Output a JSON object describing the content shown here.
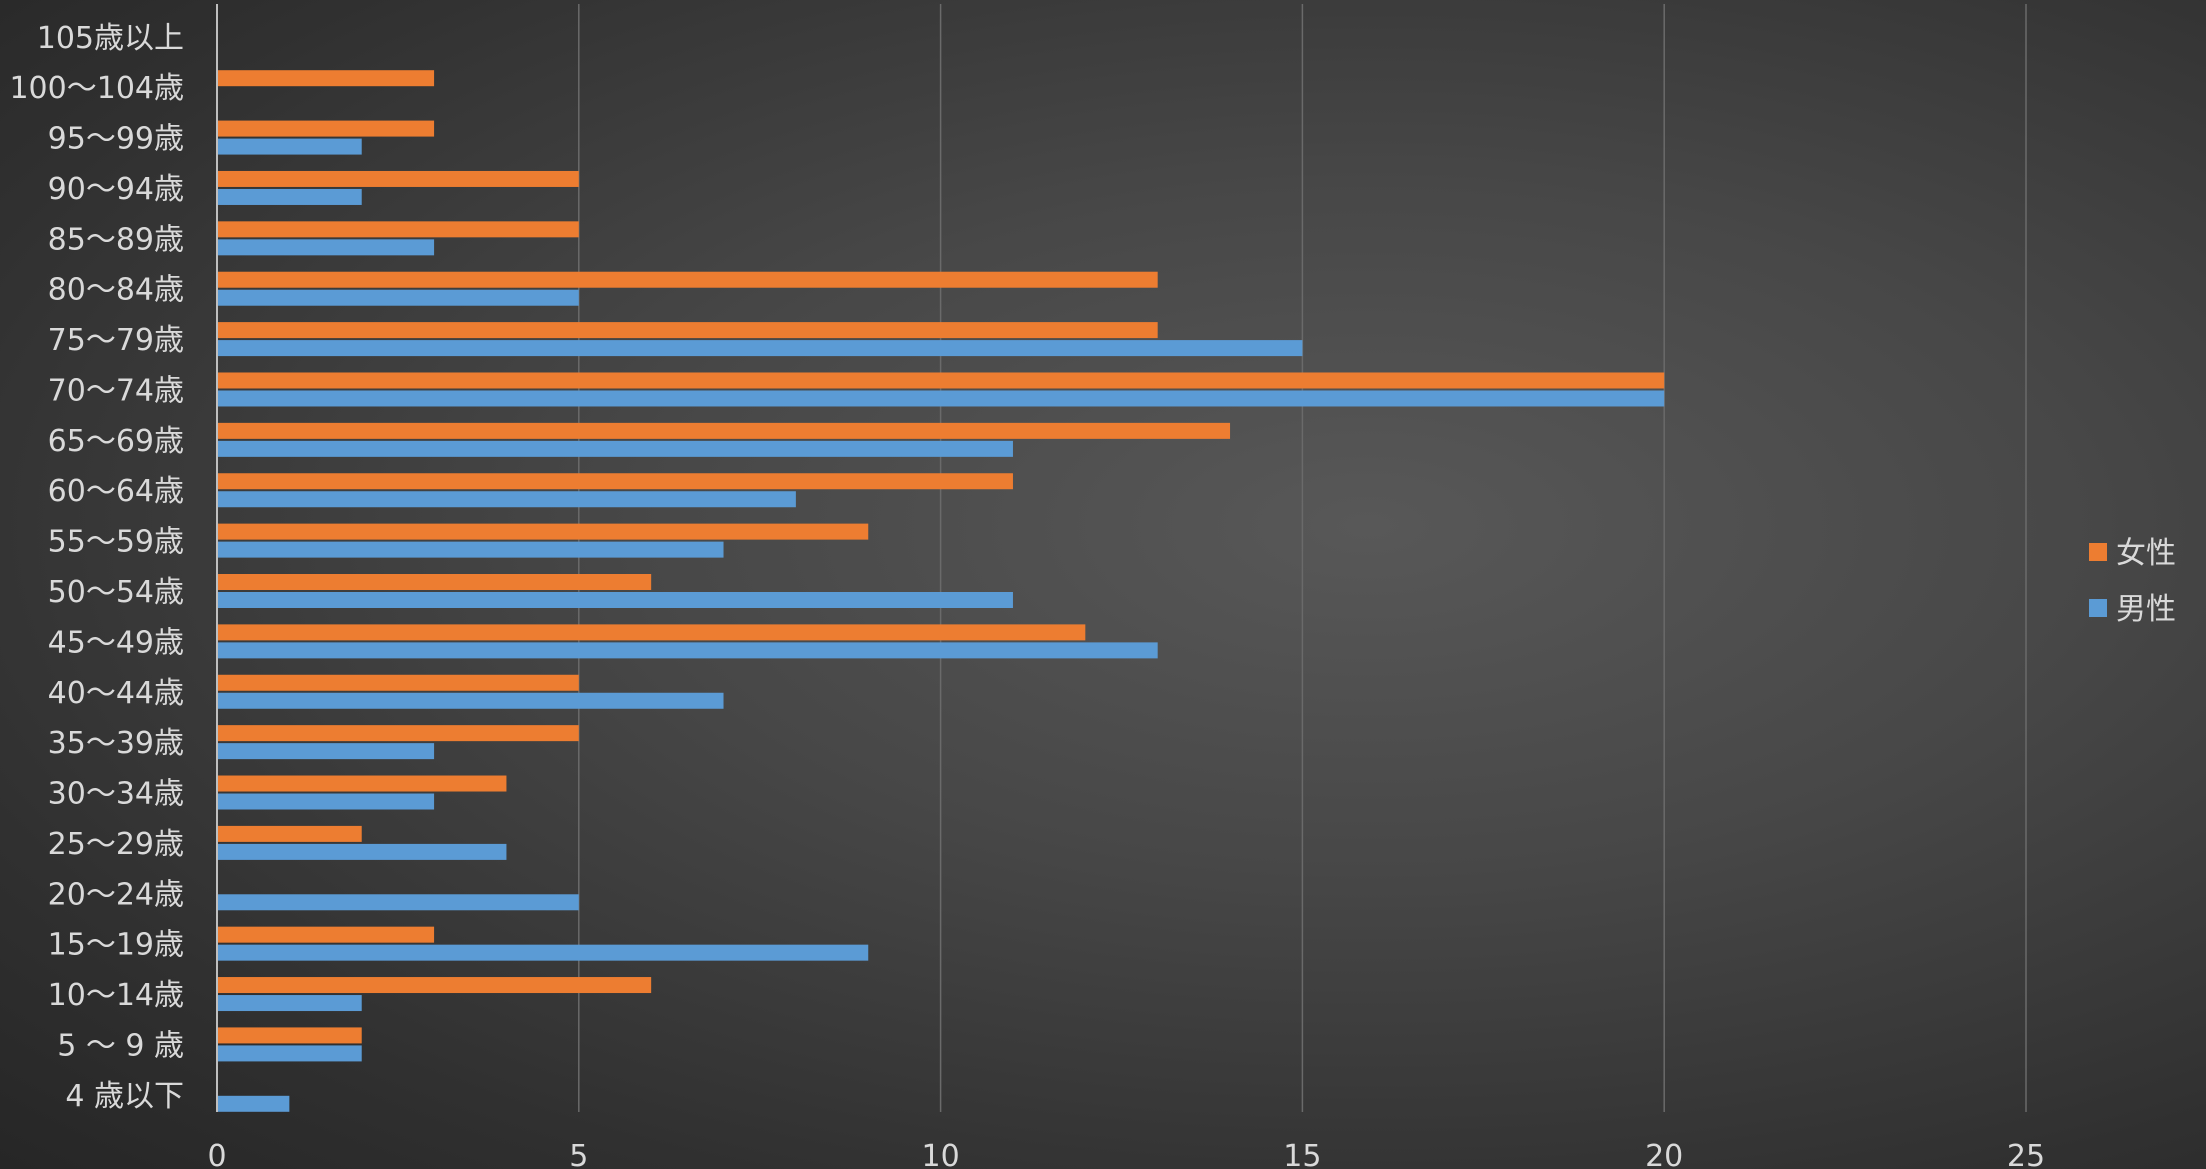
{
  "chart_data": {
    "type": "bar",
    "orientation": "horizontal",
    "categories": [
      "4 歳以下",
      "5 〜 9 歳",
      "10〜14歳",
      "15〜19歳",
      "20〜24歳",
      "25〜29歳",
      "30〜34歳",
      "35〜39歳",
      "40〜44歳",
      "45〜49歳",
      "50〜54歳",
      "55〜59歳",
      "60〜64歳",
      "65〜69歳",
      "70〜74歳",
      "75〜79歳",
      "80〜84歳",
      "85〜89歳",
      "90〜94歳",
      "95〜99歳",
      "100〜104歳",
      "105歳以上"
    ],
    "series": [
      {
        "name": "女性",
        "color": "#ed7d31",
        "values": [
          0,
          2,
          6,
          3,
          0,
          2,
          4,
          5,
          5,
          12,
          6,
          9,
          11,
          14,
          20,
          13,
          13,
          5,
          5,
          3,
          3,
          0
        ]
      },
      {
        "name": "男性",
        "color": "#5b9bd5",
        "values": [
          1,
          2,
          2,
          9,
          5,
          4,
          3,
          3,
          7,
          13,
          11,
          7,
          8,
          11,
          20,
          15,
          5,
          3,
          2,
          2,
          0,
          0
        ]
      }
    ],
    "xlim": [
      0,
      25
    ],
    "xticks": [
      0,
      5,
      10,
      15,
      20,
      25
    ],
    "grid": true,
    "legend_position": "right",
    "title": "",
    "xlabel": "",
    "ylabel": ""
  }
}
